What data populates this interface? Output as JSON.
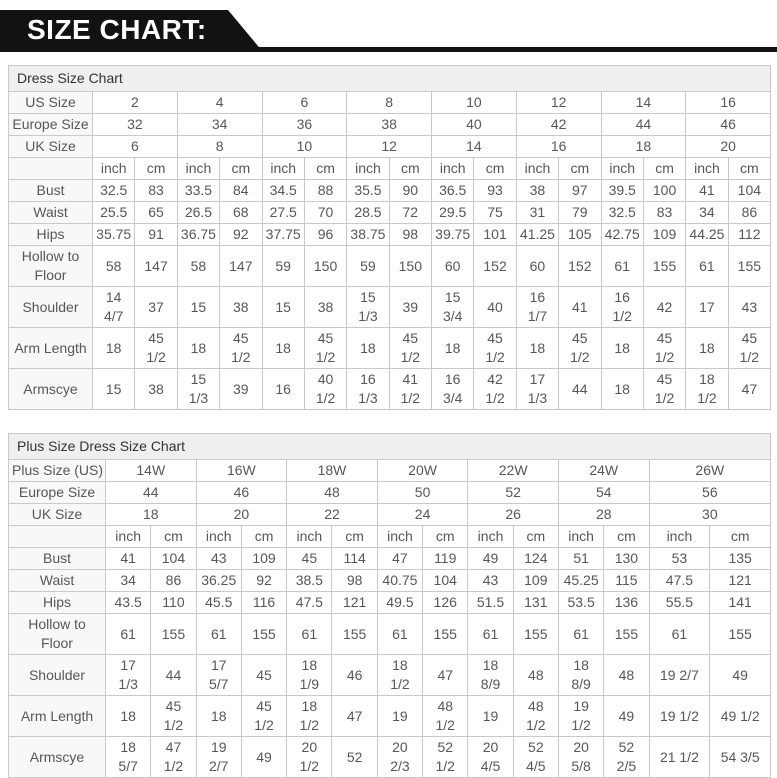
{
  "banner": {
    "title": "SIZE CHART:"
  },
  "colors": {
    "banner_background": "#121212",
    "banner_text": "#ffffff",
    "table_border": "#c9c9c9",
    "title_row_background": "#efefef",
    "label_column_background": "#f8f8f8",
    "cell_text": "#575757"
  },
  "tables": [
    {
      "title": "Dress Size Chart",
      "units": {
        "inch": "inch",
        "cm": "cm"
      },
      "size_rows": [
        {
          "label": "US Size",
          "values": [
            "2",
            "4",
            "6",
            "8",
            "10",
            "12",
            "14",
            "16"
          ]
        },
        {
          "label": "Europe Size",
          "values": [
            "32",
            "34",
            "36",
            "38",
            "40",
            "42",
            "44",
            "46"
          ]
        },
        {
          "label": "UK Size",
          "values": [
            "6",
            "8",
            "10",
            "12",
            "14",
            "16",
            "18",
            "20"
          ]
        }
      ],
      "measurement_rows": [
        {
          "label": "Bust",
          "values": [
            [
              "32.5",
              "83"
            ],
            [
              "33.5",
              "84"
            ],
            [
              "34.5",
              "88"
            ],
            [
              "35.5",
              "90"
            ],
            [
              "36.5",
              "93"
            ],
            [
              "38",
              "97"
            ],
            [
              "39.5",
              "100"
            ],
            [
              "41",
              "104"
            ]
          ]
        },
        {
          "label": "Waist",
          "values": [
            [
              "25.5",
              "65"
            ],
            [
              "26.5",
              "68"
            ],
            [
              "27.5",
              "70"
            ],
            [
              "28.5",
              "72"
            ],
            [
              "29.5",
              "75"
            ],
            [
              "31",
              "79"
            ],
            [
              "32.5",
              "83"
            ],
            [
              "34",
              "86"
            ]
          ]
        },
        {
          "label": "Hips",
          "values": [
            [
              "35.75",
              "91"
            ],
            [
              "36.75",
              "92"
            ],
            [
              "37.75",
              "96"
            ],
            [
              "38.75",
              "98"
            ],
            [
              "39.75",
              "101"
            ],
            [
              "41.25",
              "105"
            ],
            [
              "42.75",
              "109"
            ],
            [
              "44.25",
              "112"
            ]
          ]
        },
        {
          "label": "Hollow to\nFloor",
          "values": [
            [
              "58",
              "147"
            ],
            [
              "58",
              "147"
            ],
            [
              "59",
              "150"
            ],
            [
              "59",
              "150"
            ],
            [
              "60",
              "152"
            ],
            [
              "60",
              "152"
            ],
            [
              "61",
              "155"
            ],
            [
              "61",
              "155"
            ]
          ]
        },
        {
          "label": "Shoulder",
          "values": [
            [
              "14 4/7",
              "37"
            ],
            [
              "15",
              "38"
            ],
            [
              "15",
              "38"
            ],
            [
              "15 1/3",
              "39"
            ],
            [
              "15 3/4",
              "40"
            ],
            [
              "16 1/7",
              "41"
            ],
            [
              "16 1/2",
              "42"
            ],
            [
              "17",
              "43"
            ]
          ]
        },
        {
          "label": "Arm Length",
          "values": [
            [
              "18",
              "45 1/2"
            ],
            [
              "18",
              "45 1/2"
            ],
            [
              "18",
              "45 1/2"
            ],
            [
              "18",
              "45 1/2"
            ],
            [
              "18",
              "45 1/2"
            ],
            [
              "18",
              "45 1/2"
            ],
            [
              "18",
              "45 1/2"
            ],
            [
              "18",
              "45 1/2"
            ]
          ]
        },
        {
          "label": "Armscye",
          "values": [
            [
              "15",
              "38"
            ],
            [
              "15 1/3",
              "39"
            ],
            [
              "16",
              "40 1/2"
            ],
            [
              "16 1/3",
              "41 1/2"
            ],
            [
              "16 3/4",
              "42 1/2"
            ],
            [
              "17 1/3",
              "44"
            ],
            [
              "18",
              "45 1/2"
            ],
            [
              "18 1/2",
              "47"
            ]
          ]
        }
      ]
    },
    {
      "title": "Plus Size Dress Size Chart",
      "units": {
        "inch": "inch",
        "cm": "cm"
      },
      "size_rows": [
        {
          "label": "Plus Size (US)",
          "values": [
            "14W",
            "16W",
            "18W",
            "20W",
            "22W",
            "24W",
            "26W"
          ]
        },
        {
          "label": "Europe Size",
          "values": [
            "44",
            "46",
            "48",
            "50",
            "52",
            "54",
            "56"
          ]
        },
        {
          "label": "UK Size",
          "values": [
            "18",
            "20",
            "22",
            "24",
            "26",
            "28",
            "30"
          ]
        }
      ],
      "measurement_rows": [
        {
          "label": "Bust",
          "values": [
            [
              "41",
              "104"
            ],
            [
              "43",
              "109"
            ],
            [
              "45",
              "114"
            ],
            [
              "47",
              "119"
            ],
            [
              "49",
              "124"
            ],
            [
              "51",
              "130"
            ],
            [
              "53",
              "135"
            ]
          ]
        },
        {
          "label": "Waist",
          "values": [
            [
              "34",
              "86"
            ],
            [
              "36.25",
              "92"
            ],
            [
              "38.5",
              "98"
            ],
            [
              "40.75",
              "104"
            ],
            [
              "43",
              "109"
            ],
            [
              "45.25",
              "115"
            ],
            [
              "47.5",
              "121"
            ]
          ]
        },
        {
          "label": "Hips",
          "values": [
            [
              "43.5",
              "110"
            ],
            [
              "45.5",
              "116"
            ],
            [
              "47.5",
              "121"
            ],
            [
              "49.5",
              "126"
            ],
            [
              "51.5",
              "131"
            ],
            [
              "53.5",
              "136"
            ],
            [
              "55.5",
              "141"
            ]
          ]
        },
        {
          "label": "Hollow to\nFloor",
          "values": [
            [
              "61",
              "155"
            ],
            [
              "61",
              "155"
            ],
            [
              "61",
              "155"
            ],
            [
              "61",
              "155"
            ],
            [
              "61",
              "155"
            ],
            [
              "61",
              "155"
            ],
            [
              "61",
              "155"
            ]
          ]
        },
        {
          "label": "Shoulder",
          "values": [
            [
              "17 1/3",
              "44"
            ],
            [
              "17 5/7",
              "45"
            ],
            [
              "18 1/9",
              "46"
            ],
            [
              "18 1/2",
              "47"
            ],
            [
              "18 8/9",
              "48"
            ],
            [
              "18 8/9",
              "48"
            ],
            [
              "19 2/7",
              "49"
            ]
          ]
        },
        {
          "label": "Arm Length",
          "values": [
            [
              "18",
              "45 1/2"
            ],
            [
              "18",
              "45 1/2"
            ],
            [
              "18 1/2",
              "47"
            ],
            [
              "19",
              "48 1/2"
            ],
            [
              "19",
              "48 1/2"
            ],
            [
              "19 1/2",
              "49"
            ],
            [
              "19 1/2",
              "49 1/2"
            ]
          ]
        },
        {
          "label": "Armscye",
          "values": [
            [
              "18 5/7",
              "47 1/2"
            ],
            [
              "19 2/7",
              "49"
            ],
            [
              "20 1/2",
              "52"
            ],
            [
              "20 2/3",
              "52 1/2"
            ],
            [
              "20 4/5",
              "52 4/5"
            ],
            [
              "20 5/8",
              "52 2/5"
            ],
            [
              "21 1/2",
              "54 3/5"
            ]
          ]
        }
      ]
    }
  ]
}
